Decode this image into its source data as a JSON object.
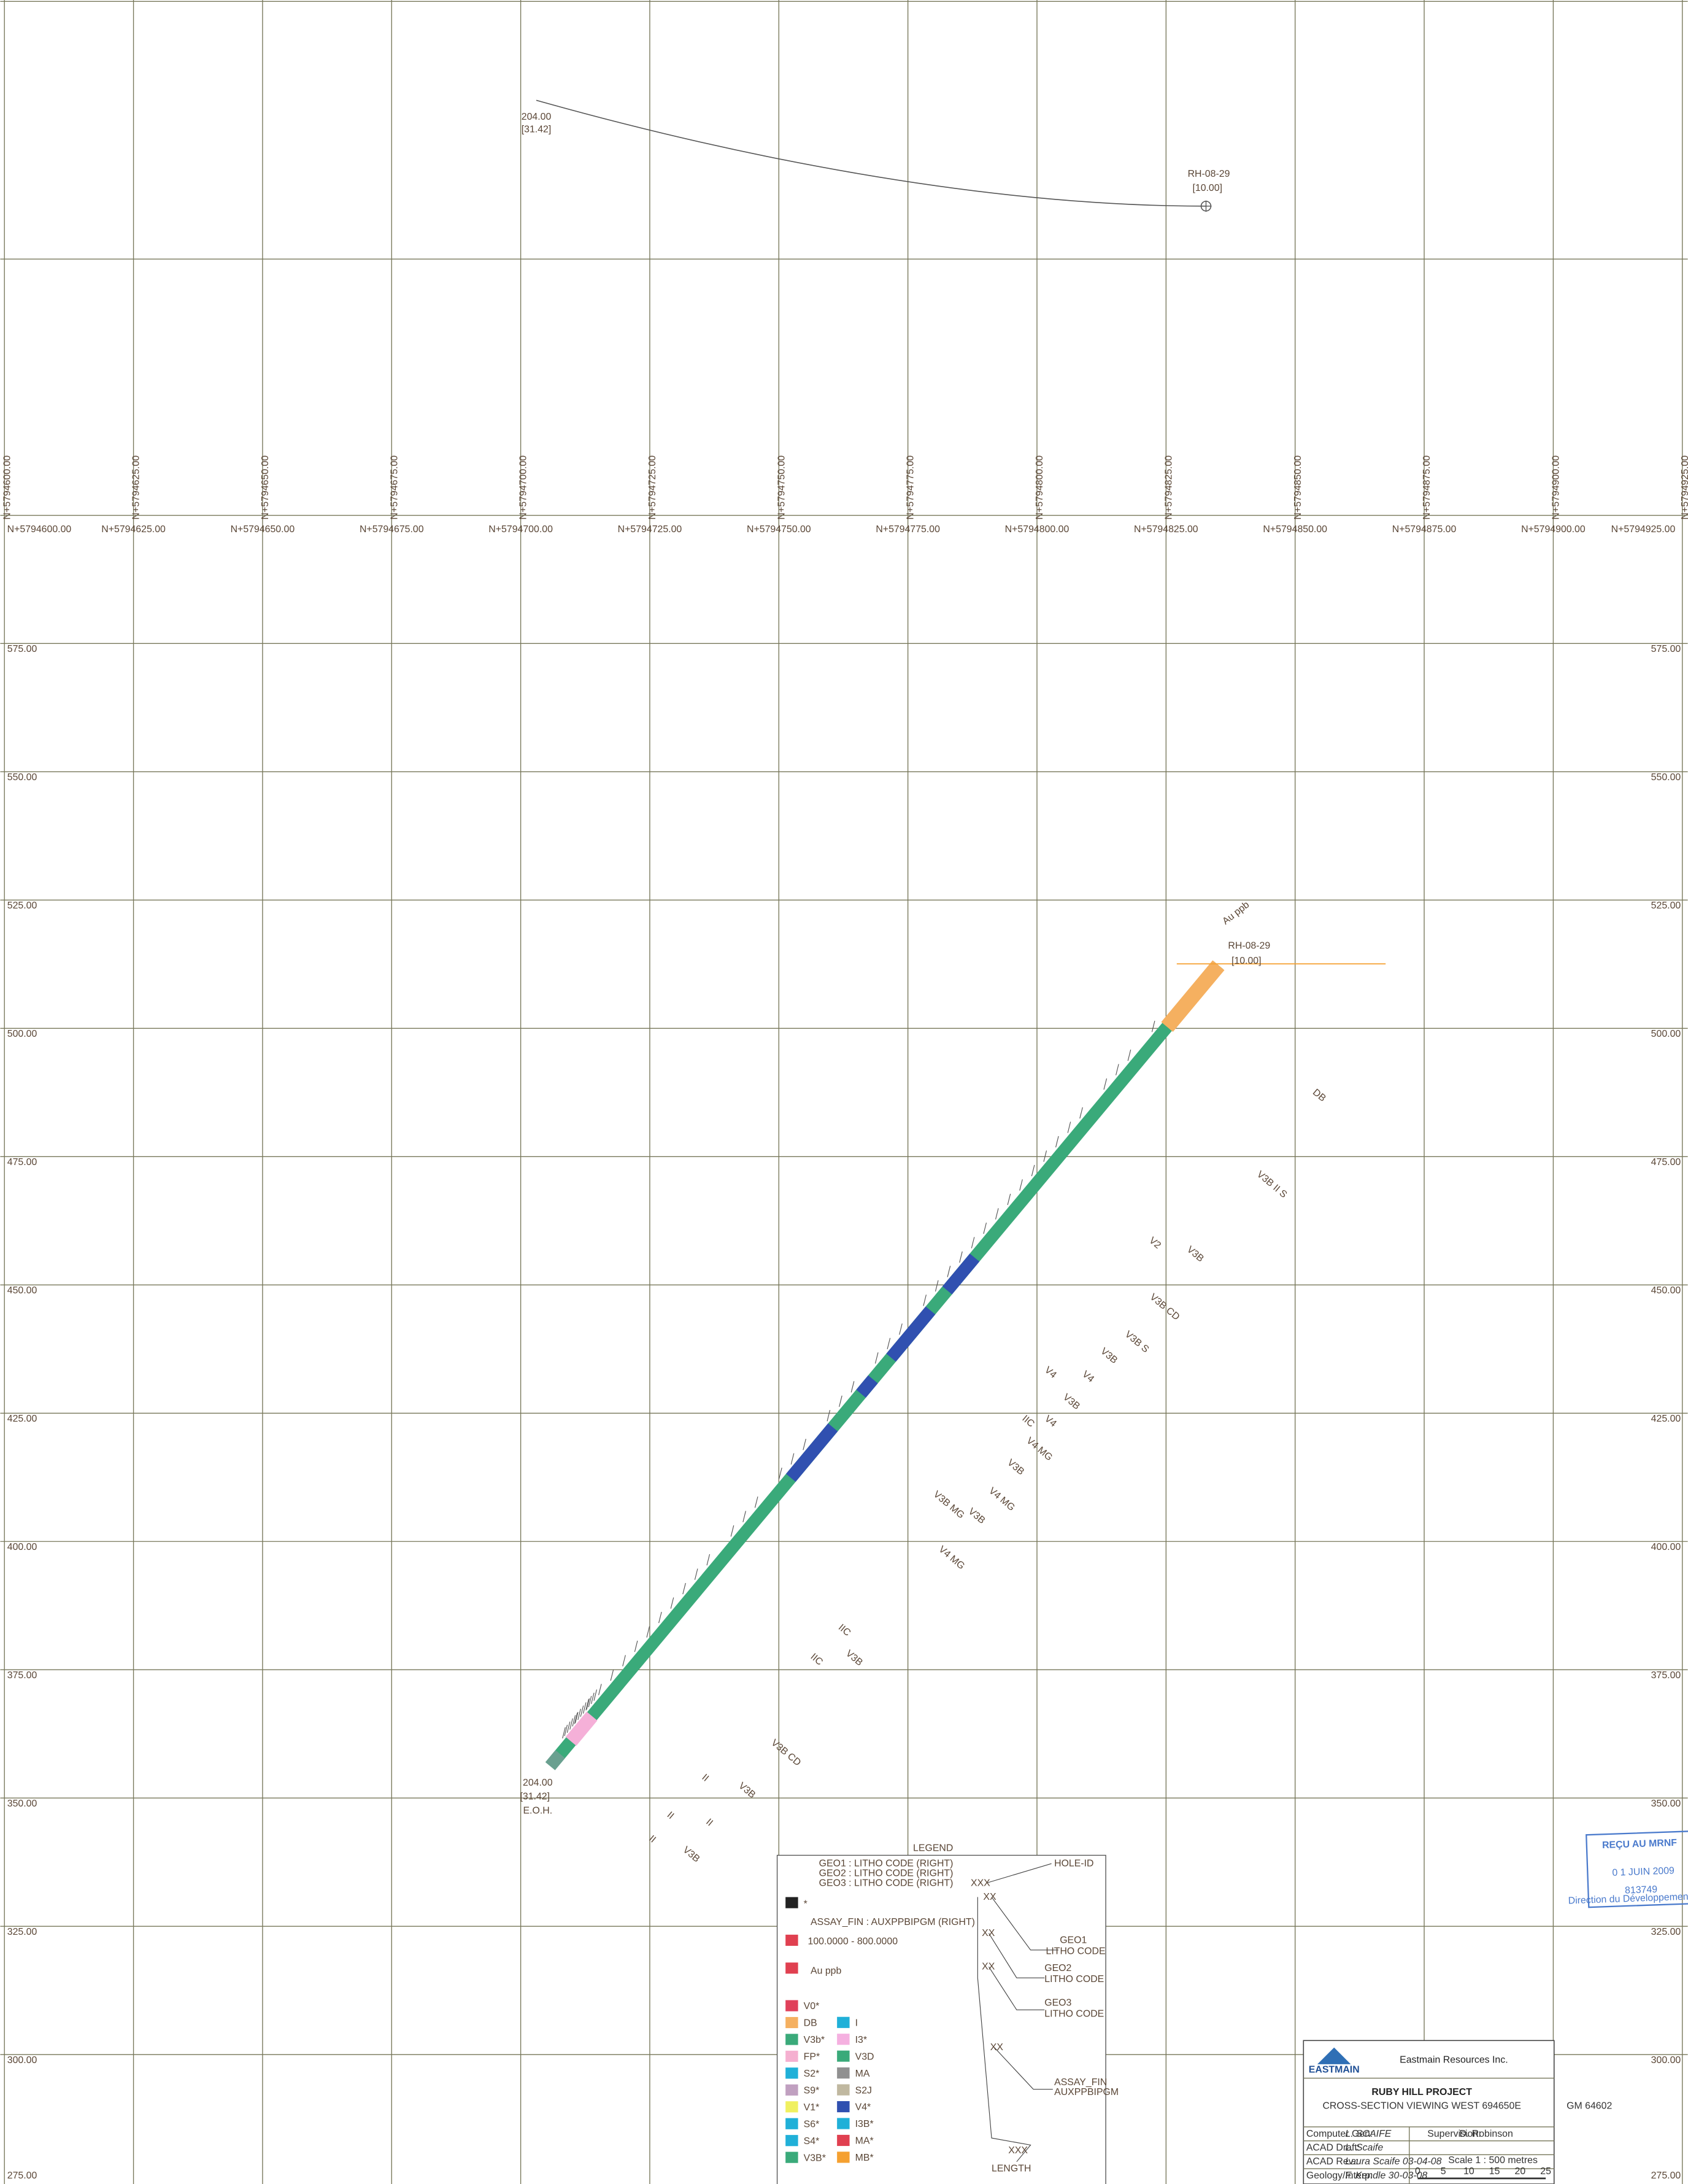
{
  "plan": {
    "hole_id": "RH-08-29",
    "collar_depth": "[10.00]",
    "eoh_length": "204.00",
    "eoh_bracket": "[31.42]"
  },
  "section": {
    "northings": [
      "N+5794600.00",
      "N+5794625.00",
      "N+5794650.00",
      "N+5794675.00",
      "N+5794700.00",
      "N+5794725.00",
      "N+5794750.00",
      "N+5794775.00",
      "N+5794800.00",
      "N+5794825.00",
      "N+5794850.00",
      "N+5794875.00",
      "N+5794900.00",
      "N+5794925.00"
    ],
    "elevations": [
      "575.00",
      "550.00",
      "525.00",
      "500.00",
      "475.00",
      "450.00",
      "425.00",
      "400.00",
      "375.00",
      "350.00",
      "325.00",
      "300.00",
      "275.00"
    ],
    "hole_id": "RH-08-29",
    "collar_depth": "[10.00]",
    "assay_label": "Au ppb",
    "eoh_length": "204.00",
    "eoh_bracket": "[31.42]",
    "eoh": "E.O.H.",
    "annotations": [
      "DB",
      "V3B II S",
      "V2",
      "V3B",
      "V3B CD",
      "V3B S",
      "V3B",
      "V4",
      "V4",
      "V3B",
      "V4",
      "IIC",
      "V4 MG",
      "V3B",
      "V4 MG",
      "V3B",
      "V3B MG",
      "V4 MG",
      "IIC",
      "V3B",
      "IIC",
      "V3B CD",
      "II",
      "V3B",
      "II",
      "II",
      "V3B",
      "II"
    ]
  },
  "legend": {
    "title": "LEGEND",
    "geo_lines": [
      "GEO1 : LITHO CODE (RIGHT)",
      "GEO2 : LITHO CODE (RIGHT)",
      "GEO3 : LITHO CODE (RIGHT)"
    ],
    "star": "*",
    "assay_line": "ASSAY_FIN : AUXPPBIPGM (RIGHT)",
    "assay_range": "100.0000  -  800.0000",
    "assay_name": "Au ppb",
    "litho_left": [
      {
        "code": "V0*",
        "color": "#e0405a"
      },
      {
        "code": "DB",
        "color": "#f5b060"
      },
      {
        "code": "V3b*",
        "color": "#3aaa7a"
      },
      {
        "code": "FP*",
        "color": "#f5b0d0"
      },
      {
        "code": "S2*",
        "color": "#20b0d8"
      },
      {
        "code": "S9*",
        "color": "#c0a0c0"
      },
      {
        "code": "V1*",
        "color": "#f0f060"
      },
      {
        "code": "S6*",
        "color": "#20b0d8"
      },
      {
        "code": "S4*",
        "color": "#20b0d8"
      },
      {
        "code": "V3B*",
        "color": "#3aaa7a"
      }
    ],
    "litho_right": [
      {
        "code": "I",
        "color": "#20b0d8"
      },
      {
        "code": "I3*",
        "color": "#f5b0e0"
      },
      {
        "code": "V3D",
        "color": "#3aaa7a"
      },
      {
        "code": "MA",
        "color": "#909090"
      },
      {
        "code": "S2J",
        "color": "#c0b8a0"
      },
      {
        "code": "V4*",
        "color": "#3050b0"
      },
      {
        "code": "I3B*",
        "color": "#20b0d8"
      },
      {
        "code": "MA*",
        "color": "#e04050"
      },
      {
        "code": "MB*",
        "color": "#f5a030"
      }
    ],
    "key": {
      "hole_id": "HOLE-ID",
      "xxx1": "XXX",
      "xx1": "XX",
      "geo1": "GEO1",
      "litho1": "LITHO CODE",
      "xx2": "XX",
      "geo2": "GEO2",
      "litho2": "LITHO CODE",
      "xx3": "XX",
      "geo3": "GEO3",
      "litho3": "LITHO CODE",
      "xx4": "XX",
      "assay": "ASSAY_FIN",
      "assay_code": "AUXPPBIPGM",
      "xxx2": "XXX",
      "length": "LENGTH"
    }
  },
  "title_block": {
    "logo_text": "EASTMAIN",
    "company": "Eastmain Resources Inc.",
    "project": "RUBY HILL PROJECT",
    "subtitle": "CROSS-SECTION VIEWING WEST   694650E",
    "rows": [
      [
        "Computer Gen:",
        "L. SCAIFE"
      ],
      [
        "ACAD Draft:",
        "L. Scaife"
      ],
      [
        "ACAD Rev.:",
        "Laura Scaife   03-04-08"
      ],
      [
        "Geology/Interp:",
        "F. Kendle   30-03-08"
      ]
    ],
    "supervision": [
      "Supervision:",
      "D. Robinson"
    ],
    "scale": "Scale      1 : 500     metres",
    "scale_ticks": [
      "0",
      "5",
      "10",
      "15",
      "20",
      "25"
    ]
  },
  "gm": "GM    64602",
  "stamp": {
    "title": "REÇU AU MRNF",
    "date": "0 1 JUIN 2009",
    "number": "813749",
    "dept": "Direction du Développement minier"
  }
}
